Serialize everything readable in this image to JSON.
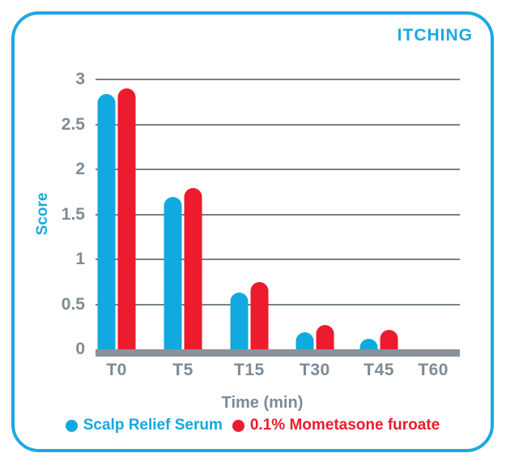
{
  "colors": {
    "accent_blue": "#1BA9E2",
    "series_blue": "#12A8E0",
    "series_red": "#EC1B2D",
    "gray_text": "#7D8B97",
    "gridline_gray": "#78828D",
    "axis_gray": "#89929B",
    "card_background": "#FFFFFF"
  },
  "chart_data": {
    "type": "bar",
    "title": "ITCHING",
    "xlabel": "Time (min)",
    "ylabel": "Score",
    "categories": [
      "T0",
      "T5",
      "T15",
      "T30",
      "T45",
      "T60"
    ],
    "series": [
      {
        "name": "Scalp Relief Serum",
        "color": "#12A8E0",
        "values": [
          2.84,
          1.69,
          0.63,
          0.19,
          0.12,
          0
        ]
      },
      {
        "name": "0.1% Mometasone furoate",
        "color": "#EC1B2D",
        "values": [
          2.9,
          1.79,
          0.75,
          0.27,
          0.22,
          0
        ]
      }
    ],
    "ylim": [
      0,
      3
    ],
    "yticks": [
      3,
      2.5,
      2,
      1.5,
      1,
      0.5,
      0
    ],
    "grid": true,
    "legend_position": "bottom",
    "group_centers_pct": [
      5.8,
      24.0,
      42.2,
      60.2,
      77.8,
      92.7
    ]
  }
}
